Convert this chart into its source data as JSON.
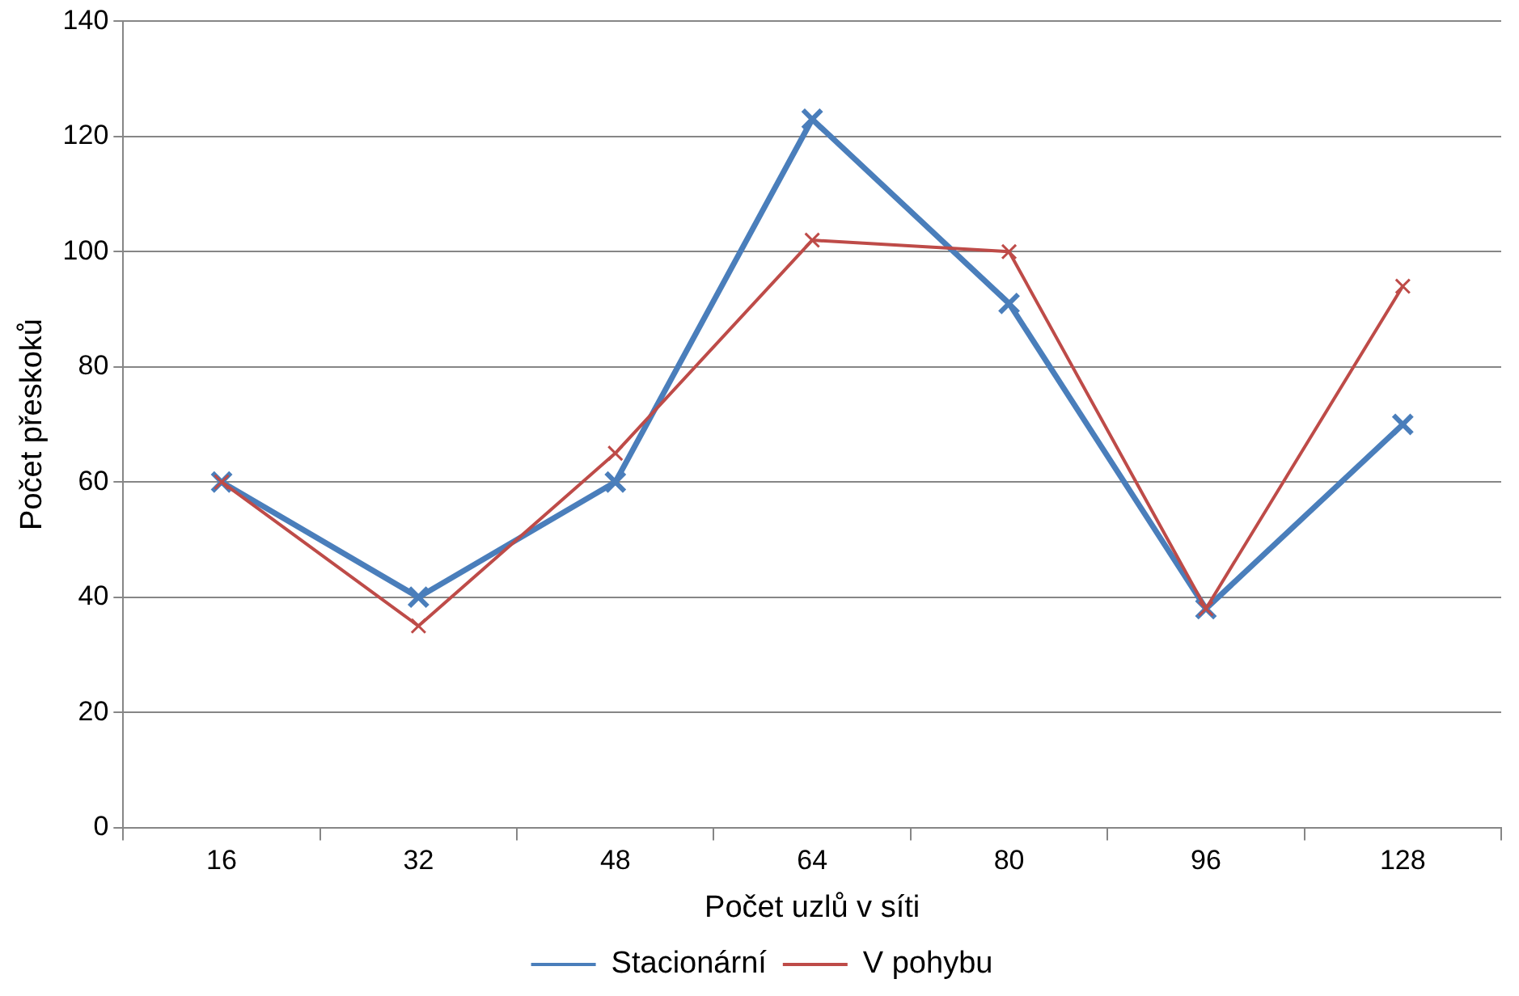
{
  "chart_data": {
    "type": "line",
    "xlabel": "Počet uzlů v síti",
    "ylabel": "Počet přeskoků",
    "categories": [
      "16",
      "32",
      "48",
      "64",
      "80",
      "96",
      "128"
    ],
    "series": [
      {
        "name": "Stacionární",
        "color": "#4a7ebb",
        "values": [
          60,
          40,
          60,
          123,
          91,
          38,
          70
        ]
      },
      {
        "name": "V pohybu",
        "color": "#be4b48",
        "values": [
          60,
          35,
          65,
          102,
          100,
          38,
          94
        ]
      }
    ],
    "ylim": [
      0,
      140
    ],
    "yticks": [
      0,
      20,
      40,
      60,
      80,
      100,
      120,
      140
    ],
    "grid": "y",
    "legend": "bottom",
    "marker": "cross",
    "line_style": "solid"
  }
}
